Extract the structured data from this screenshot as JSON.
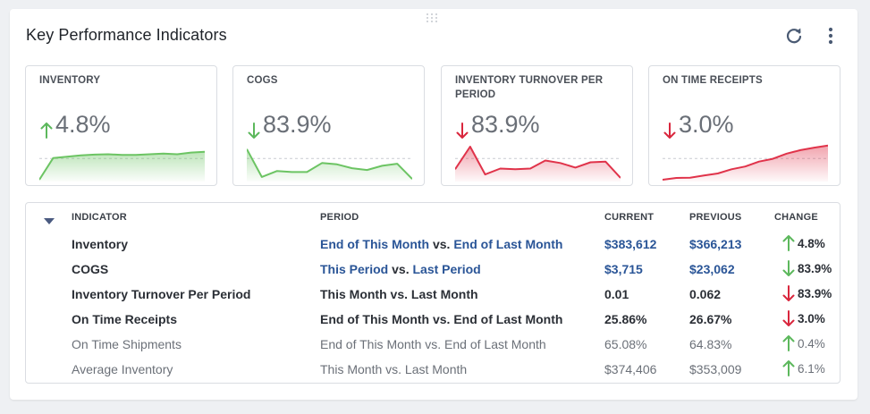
{
  "title": "Key Performance Indicators",
  "icons": {
    "refresh": "refresh-icon",
    "menu": "more-vertical-icon",
    "drag": "drag-handle-icon",
    "collapse": "caret-down-icon"
  },
  "colors": {
    "up": "#5cb85c",
    "down": "#d9263d",
    "link": "#2a5597",
    "spark_green": "#6cc463",
    "spark_red": "#e0334a"
  },
  "cards": [
    {
      "title": "INVENTORY",
      "direction": "up",
      "value": "4.8%",
      "color": "green",
      "spark": [
        0,
        0.62,
        0.66,
        0.7,
        0.72,
        0.73,
        0.71,
        0.71,
        0.73,
        0.75,
        0.73,
        0.78,
        0.8
      ]
    },
    {
      "title": "COGS",
      "direction": "down",
      "value": "83.9%",
      "color": "green",
      "spark": [
        0.88,
        0.08,
        0.25,
        0.22,
        0.22,
        0.48,
        0.44,
        0.33,
        0.28,
        0.4,
        0.46,
        0.02
      ]
    },
    {
      "title": "INVENTORY TURNOVER PER PERIOD",
      "direction": "down",
      "value": "83.9%",
      "color": "red",
      "spark": [
        0.3,
        0.95,
        0.15,
        0.32,
        0.3,
        0.32,
        0.55,
        0.48,
        0.35,
        0.5,
        0.52,
        0.05
      ]
    },
    {
      "title": "ON TIME RECEIPTS",
      "direction": "down",
      "value": "3.0%",
      "color": "red",
      "spark": [
        0,
        0.05,
        0.06,
        0.12,
        0.18,
        0.3,
        0.38,
        0.52,
        0.6,
        0.75,
        0.85,
        0.92,
        0.98
      ]
    }
  ],
  "table": {
    "headers": {
      "indicator": "INDICATOR",
      "period": "PERIOD",
      "current": "CURRENT",
      "previous": "PREVIOUS",
      "change": "CHANGE"
    },
    "rows": [
      {
        "indicator": "Inventory",
        "period_a": "End of This Month",
        "vs": " vs. ",
        "period_b": "End of Last Month",
        "current": "$383,612",
        "previous": "$366,213",
        "direction": "up",
        "change": "4.8%",
        "style": "bold",
        "linked": true
      },
      {
        "indicator": "COGS",
        "period_a": "This Period",
        "vs": " vs. ",
        "period_b": "Last Period",
        "current": "$3,715",
        "previous": "$23,062",
        "direction": "down-good",
        "change": "83.9%",
        "style": "bold",
        "linked": true
      },
      {
        "indicator": "Inventory Turnover Per Period",
        "period_a": "This Month",
        "vs": " vs. ",
        "period_b": "Last Month",
        "current": "0.01",
        "previous": "0.062",
        "direction": "down",
        "change": "83.9%",
        "style": "bold",
        "linked": false
      },
      {
        "indicator": "On Time Receipts",
        "period_a": "End of This Month",
        "vs": " vs. ",
        "period_b": "End of Last Month",
        "current": "25.86%",
        "previous": "26.67%",
        "direction": "down",
        "change": "3.0%",
        "style": "bold",
        "linked": false
      },
      {
        "indicator": "On Time Shipments",
        "period_a": "End of This Month",
        "vs": " vs. ",
        "period_b": "End of Last Month",
        "current": "65.08%",
        "previous": "64.83%",
        "direction": "up",
        "change": "0.4%",
        "style": "light",
        "linked": false
      },
      {
        "indicator": "Average Inventory",
        "period_a": "This Month",
        "vs": " vs. ",
        "period_b": "Last Month",
        "current": "$374,406",
        "previous": "$353,009",
        "direction": "up",
        "change": "6.1%",
        "style": "light",
        "linked": false
      }
    ]
  }
}
